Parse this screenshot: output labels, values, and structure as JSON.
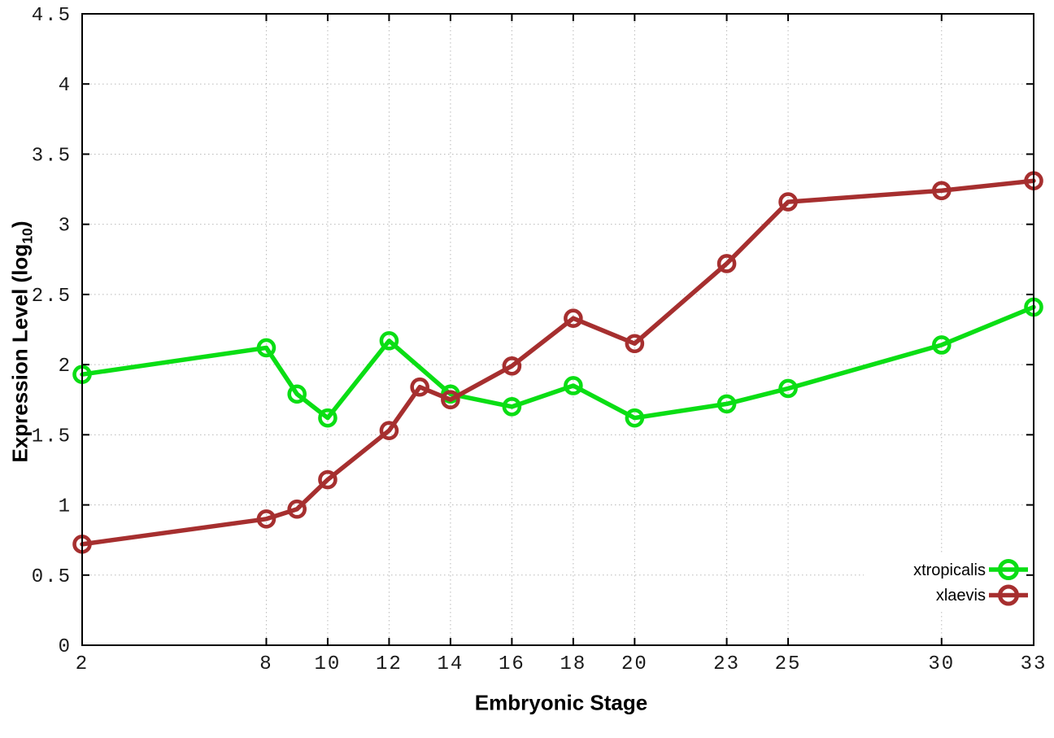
{
  "figure": {
    "background": "#ffffff",
    "border_color": "#000000",
    "grid_color": "#b9b9b9",
    "tick_label_color": "#1a1a1a"
  },
  "axes": {
    "x_title": "Embryonic Stage",
    "y_title_prefix": "Expression Level (log",
    "y_title_sub": "10",
    "y_title_suffix": ")"
  },
  "legend": {
    "position": "bottom-right",
    "items": [
      {
        "label": "xtropicalis",
        "color": "#0ade14"
      },
      {
        "label": "xlaevis",
        "color": "#a62f2f"
      }
    ]
  },
  "chart_data": {
    "type": "line",
    "title": "",
    "xlabel": "Embryonic Stage",
    "ylabel": "Expression Level (log10)",
    "xlim": [
      2,
      33
    ],
    "ylim": [
      0,
      4.5
    ],
    "x_ticks": [
      2,
      8,
      10,
      12,
      14,
      16,
      18,
      20,
      23,
      25,
      30,
      33
    ],
    "y_ticks": [
      0,
      0.5,
      1,
      1.5,
      2,
      2.5,
      3,
      3.5,
      4,
      4.5
    ],
    "grid": true,
    "legend_position": "bottom-right",
    "marker": "open-circle",
    "series": [
      {
        "name": "xtropicalis",
        "color": "#0ade14",
        "x": [
          2,
          8,
          9,
          10,
          12,
          14,
          16,
          18,
          20,
          23,
          25,
          30,
          33
        ],
        "y": [
          1.93,
          2.12,
          1.79,
          1.62,
          2.17,
          1.79,
          1.7,
          1.85,
          1.62,
          1.72,
          1.83,
          2.14,
          2.41
        ]
      },
      {
        "name": "xlaevis",
        "color": "#a62f2f",
        "x": [
          2,
          8,
          9,
          10,
          12,
          13,
          14,
          16,
          18,
          20,
          23,
          25,
          30,
          33
        ],
        "y": [
          0.72,
          0.9,
          0.97,
          1.18,
          1.53,
          1.84,
          1.75,
          1.99,
          2.33,
          2.15,
          2.72,
          3.16,
          3.24,
          3.31
        ]
      }
    ]
  }
}
